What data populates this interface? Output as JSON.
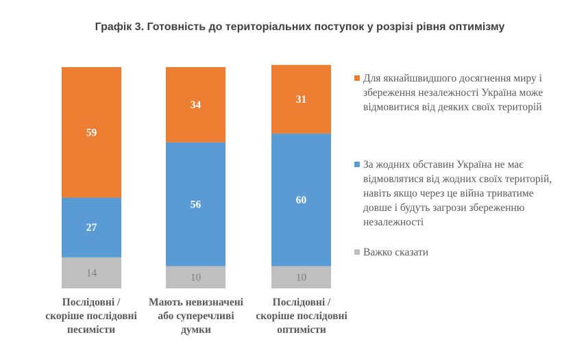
{
  "chart_data": {
    "type": "bar",
    "stacked": true,
    "title": "Графік 3. Готовність до територіальних поступок у розрізі рівня оптимізму",
    "categories": [
      "Послідовні / скоріше послідовні песимісти",
      "Мають невизначені або суперечливі думки",
      "Послідовні / скоріше послідовні оптимісти"
    ],
    "category_lines": [
      [
        "Послідовні /",
        "скоріше послідовні",
        "песимісти"
      ],
      [
        "Мають невизначені",
        "або суперечливі",
        "думки"
      ],
      [
        "Послідовні /",
        "скоріше послідовні",
        "оптимісти"
      ]
    ],
    "series": [
      {
        "name": "Важко сказати",
        "values": [
          14,
          10,
          10
        ],
        "color": "#BFBFBF"
      },
      {
        "name": "За жодних обставин Україна не має відмовлятися від жодних своїх територій, навіть якщо через це війна триватиме довше і будуть загрози збереженню незалежності",
        "values": [
          27,
          56,
          60
        ],
        "color": "#5B9BD5"
      },
      {
        "name": "Для якнайшвидшого досягнення миру і збереження незалежності Україна може відмовитися від деяких своїх територій",
        "values": [
          59,
          34,
          31
        ],
        "color": "#ED7D31"
      }
    ],
    "legend_order": [
      2,
      1,
      0
    ],
    "legend_position": "right",
    "grid": false,
    "ylim": [
      0,
      100
    ]
  }
}
